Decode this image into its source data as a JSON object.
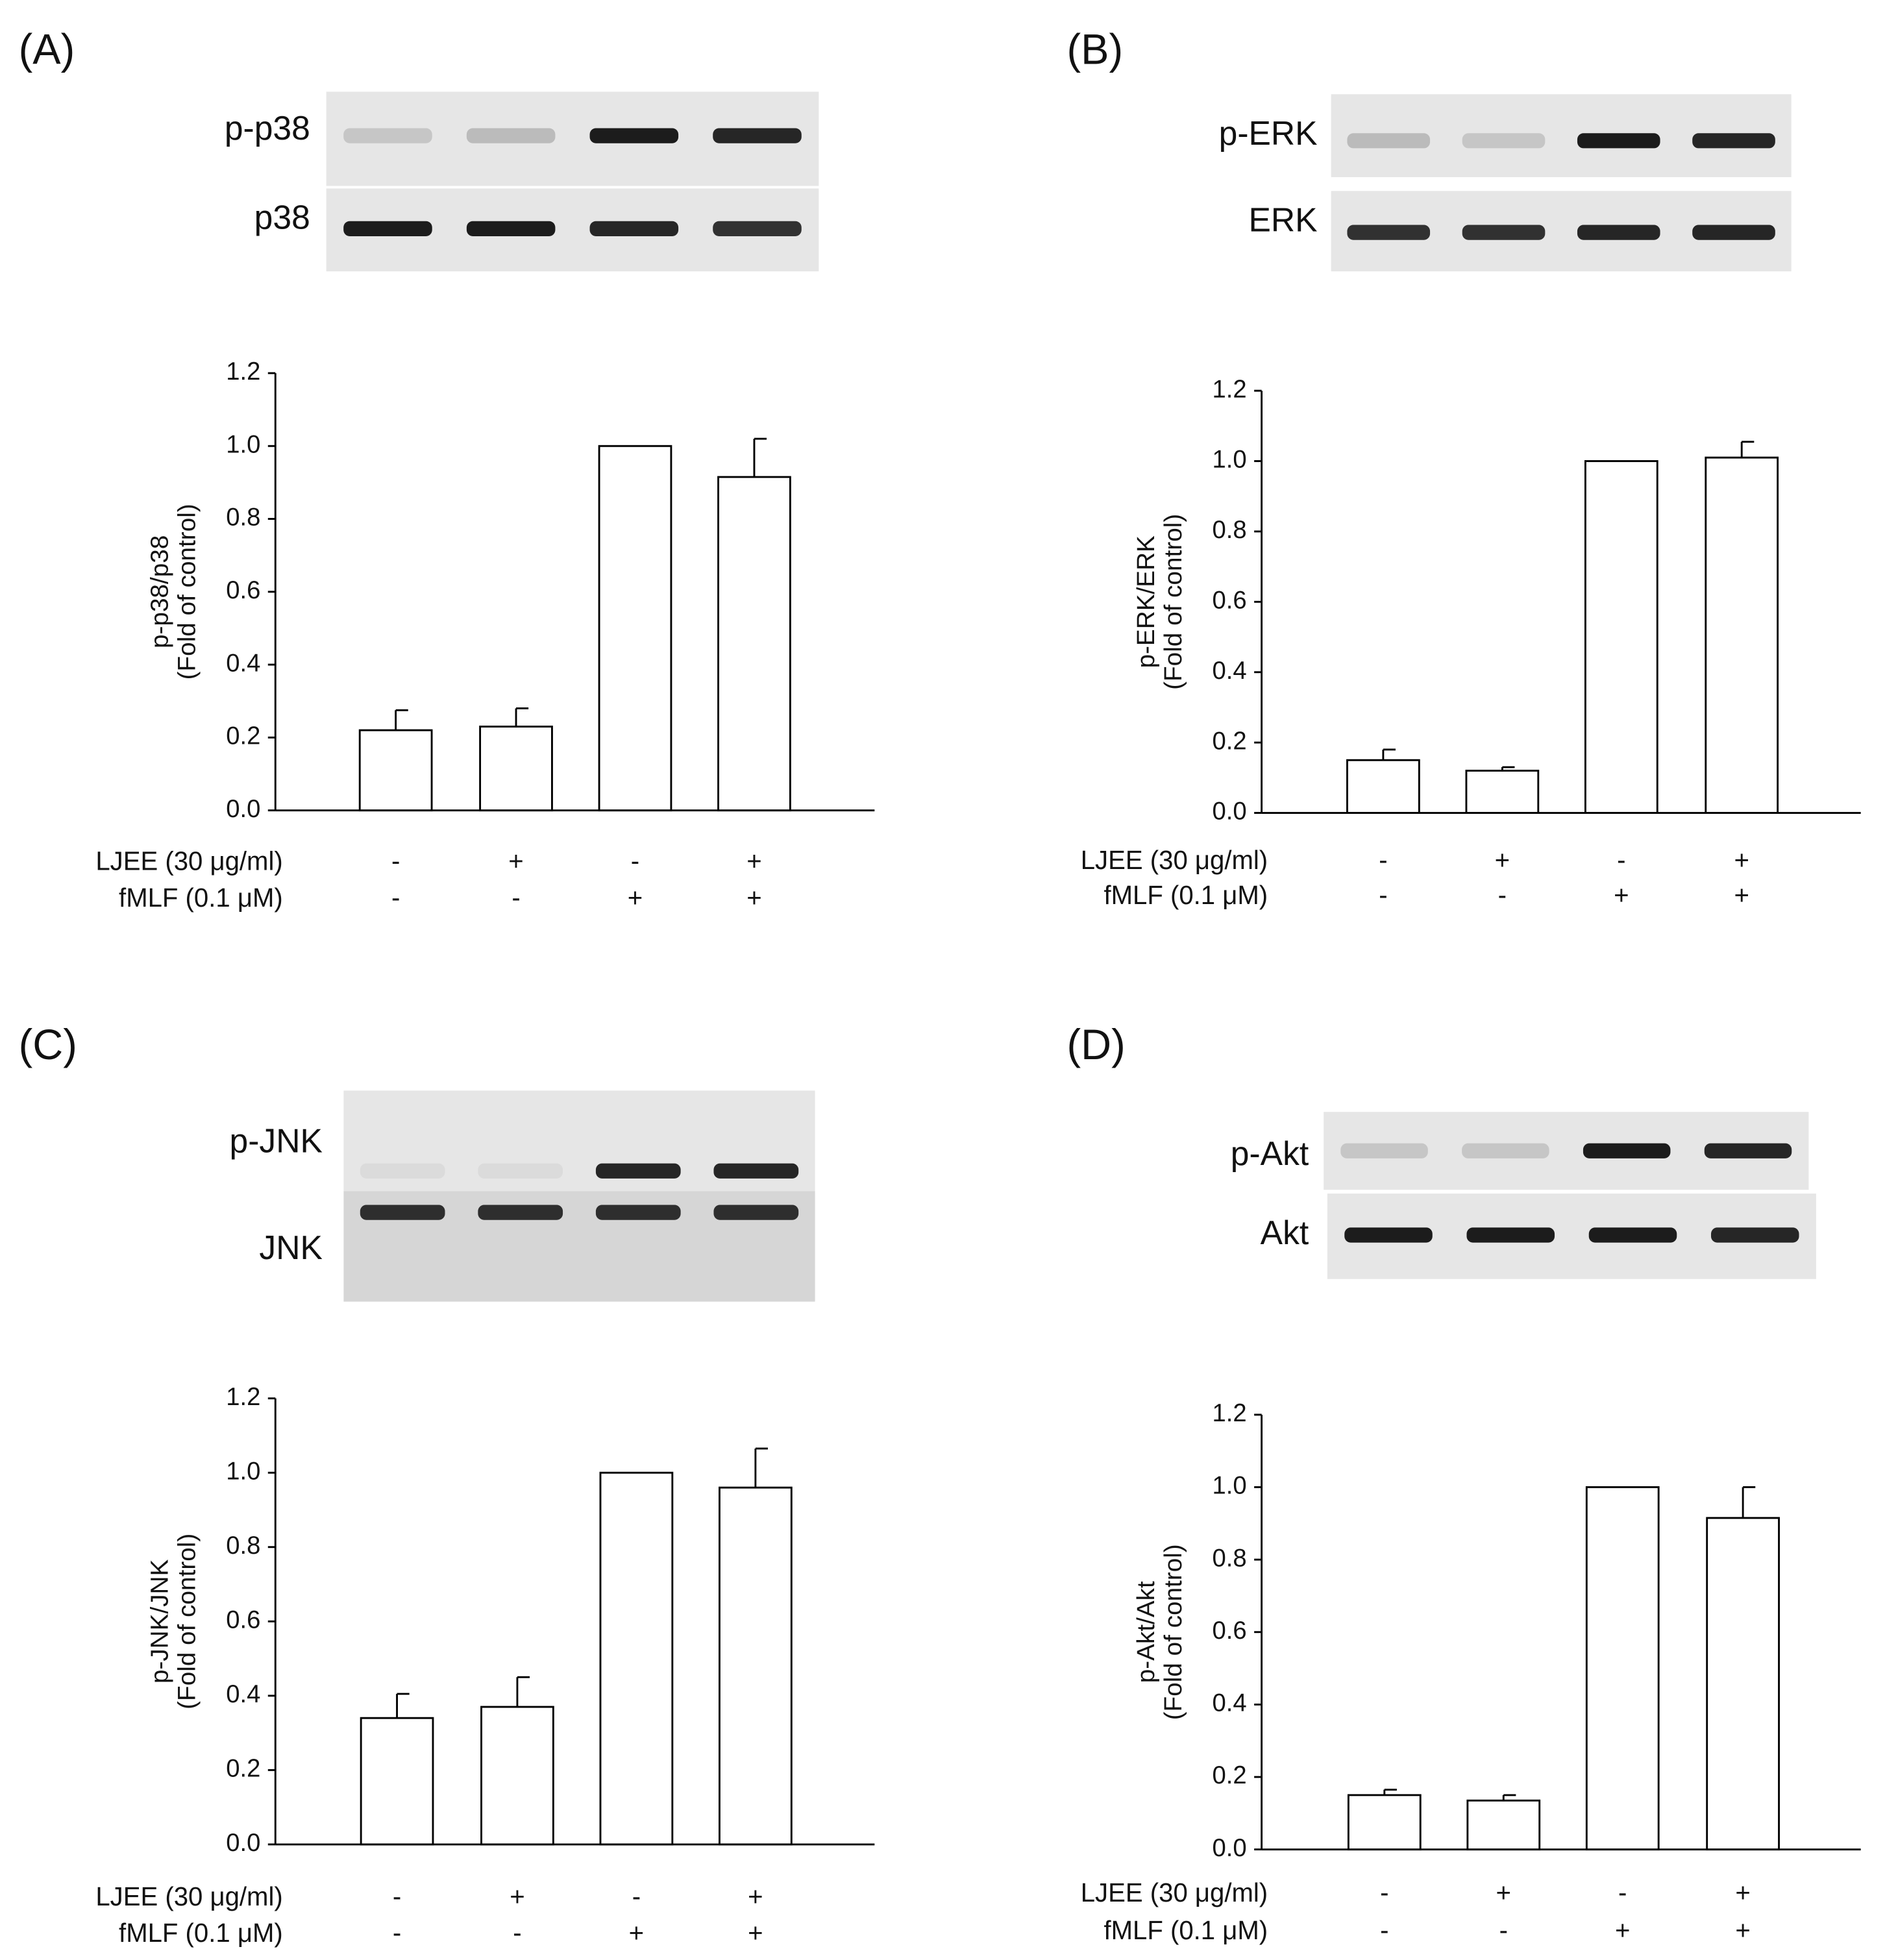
{
  "chart_data": [
    {
      "type": "bar",
      "panel_label": "(A)",
      "blot_labels": [
        "p-p38",
        "p38"
      ],
      "y_label": [
        "p-p38/p38",
        "(Fold of control)"
      ],
      "categories": [
        null,
        null,
        null,
        null
      ],
      "values": [
        0.22,
        0.23,
        1.0,
        0.915
      ],
      "errors": [
        0.055,
        0.05,
        null,
        0.105
      ],
      "treatments": [
        {
          "label": "LJEE (30 μg/ml)",
          "signs": [
            "-",
            "+",
            "-",
            "+"
          ]
        },
        {
          "label": "fMLF (0.1 μM)",
          "signs": [
            "-",
            "-",
            "+",
            "+"
          ]
        }
      ],
      "ylim": [
        0,
        1.2
      ],
      "yticks": [
        {
          "value": 0,
          "label": "0.0"
        },
        0.2,
        0.4,
        0.6,
        0.8,
        {
          "value": 1,
          "label": "1.0"
        },
        1.2
      ],
      "color": "#ffffff"
    },
    {
      "type": "bar",
      "panel_label": "(B)",
      "blot_labels": [
        "p-ERK",
        "ERK"
      ],
      "y_label": [
        "p-ERK/ERK",
        "(Fold of control)"
      ],
      "categories": [
        null,
        null,
        null,
        null
      ],
      "values": [
        0.15,
        0.12,
        1.0,
        1.01
      ],
      "errors": [
        0.03,
        0.01,
        null,
        0.045
      ],
      "treatments": [
        {
          "label": "LJEE (30 μg/ml)",
          "signs": [
            "-",
            "+",
            "-",
            "+"
          ]
        },
        {
          "label": "fMLF (0.1 μM)",
          "signs": [
            "-",
            "-",
            "+",
            "+"
          ]
        }
      ],
      "ylim": [
        0,
        1.2
      ],
      "yticks": [
        {
          "value": 0,
          "label": "0.0"
        },
        0.2,
        0.4,
        0.6,
        0.8,
        {
          "value": 1,
          "label": "1.0"
        },
        1.2
      ],
      "color": "#ffffff"
    },
    {
      "type": "bar",
      "panel_label": "(C)",
      "blot_labels": [
        "p-JNK",
        "JNK"
      ],
      "y_label": [
        "p-JNK/JNK",
        "(Fold of control)"
      ],
      "categories": [
        null,
        null,
        null,
        null
      ],
      "values": [
        0.34,
        0.37,
        1.0,
        0.96
      ],
      "errors": [
        0.065,
        0.08,
        null,
        0.105
      ],
      "treatments": [
        {
          "label": "LJEE (30 μg/ml)",
          "signs": [
            "-",
            "+",
            "-",
            "+"
          ]
        },
        {
          "label": "fMLF (0.1 μM)",
          "signs": [
            "-",
            "-",
            "+",
            "+"
          ]
        }
      ],
      "ylim": [
        0,
        1.2
      ],
      "yticks": [
        {
          "value": 0,
          "label": "0.0"
        },
        0.2,
        0.4,
        0.6,
        0.8,
        {
          "value": 1,
          "label": "1.0"
        },
        1.2
      ],
      "color": "#ffffff"
    },
    {
      "type": "bar",
      "panel_label": "(D)",
      "blot_labels": [
        "p-Akt",
        "Akt"
      ],
      "y_label": [
        "p-Akt/Akt",
        "(Fold of control)"
      ],
      "categories": [
        null,
        null,
        null,
        null
      ],
      "values": [
        0.15,
        0.135,
        1.0,
        0.915
      ],
      "errors": [
        0.015,
        0.015,
        null,
        0.085
      ],
      "treatments": [
        {
          "label": "LJEE (30 μg/ml)",
          "signs": [
            "-",
            "+",
            "-",
            "+"
          ]
        },
        {
          "label": "fMLF (0.1 μM)",
          "signs": [
            "-",
            "-",
            "+",
            "+"
          ]
        }
      ],
      "ylim": [
        0,
        1.2
      ],
      "yticks": [
        {
          "value": 0,
          "label": "0.0"
        },
        0.2,
        0.4,
        0.6,
        0.8,
        {
          "value": 1,
          "label": "1.0"
        },
        1.2
      ],
      "color": "#ffffff"
    }
  ]
}
